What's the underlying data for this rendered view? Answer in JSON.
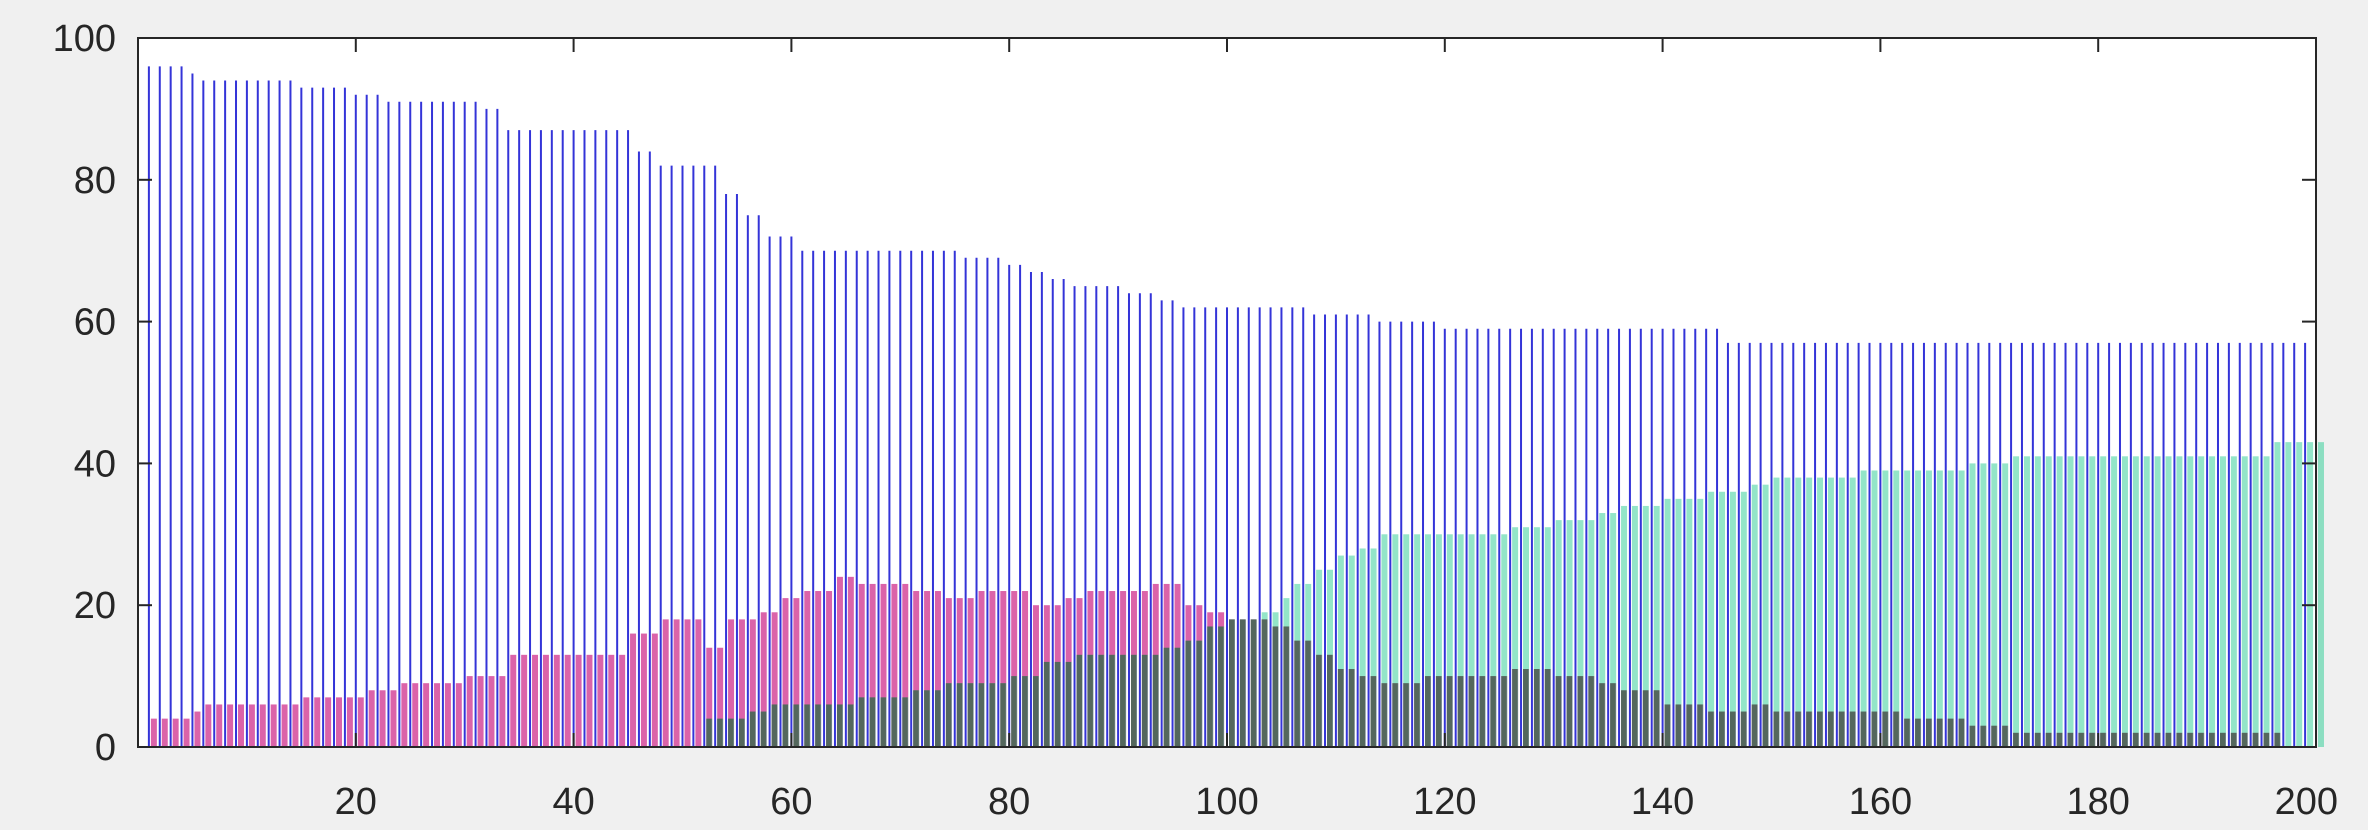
{
  "chart_data": {
    "type": "bar",
    "title": "",
    "xlabel": "",
    "ylabel": "",
    "xlim": [
      0,
      200
    ],
    "ylim": [
      0,
      100
    ],
    "x_ticks": [
      20,
      40,
      60,
      80,
      100,
      120,
      140,
      160,
      180,
      200
    ],
    "y_ticks": [
      0,
      20,
      40,
      60,
      80,
      100
    ],
    "grid": false,
    "bar_colors": {
      "blue": "#3434d8",
      "pink": "#cf2f8c",
      "green": "#3ad09a",
      "dark": "#2d3b26"
    },
    "blue_steps": [
      [
        1,
        96
      ],
      [
        5,
        95
      ],
      [
        6,
        94
      ],
      [
        15,
        93
      ],
      [
        20,
        92
      ],
      [
        23,
        91
      ],
      [
        32,
        90
      ],
      [
        34,
        87
      ],
      [
        46,
        84
      ],
      [
        48,
        82
      ],
      [
        54,
        78
      ],
      [
        56,
        75
      ],
      [
        58,
        72
      ],
      [
        61,
        70
      ],
      [
        76,
        69
      ],
      [
        80,
        68
      ],
      [
        82,
        67
      ],
      [
        84,
        66
      ],
      [
        86,
        65
      ],
      [
        91,
        64
      ],
      [
        94,
        63
      ],
      [
        96,
        62
      ],
      [
        108,
        61
      ],
      [
        114,
        60
      ],
      [
        120,
        59
      ],
      [
        146,
        57
      ]
    ],
    "pink_steps": [
      [
        1,
        4
      ],
      [
        5,
        5
      ],
      [
        6,
        6
      ],
      [
        15,
        7
      ],
      [
        21,
        8
      ],
      [
        24,
        9
      ],
      [
        30,
        10
      ],
      [
        34,
        13
      ],
      [
        45,
        16
      ],
      [
        48,
        18
      ],
      [
        52,
        14
      ],
      [
        54,
        18
      ],
      [
        57,
        19
      ],
      [
        59,
        21
      ],
      [
        61,
        22
      ],
      [
        64,
        24
      ],
      [
        66,
        23
      ],
      [
        71,
        22
      ],
      [
        74,
        21
      ],
      [
        77,
        22
      ],
      [
        82,
        20
      ],
      [
        85,
        21
      ],
      [
        87,
        22
      ],
      [
        93,
        23
      ],
      [
        96,
        20
      ],
      [
        98,
        19
      ],
      [
        100,
        18
      ],
      [
        104,
        17
      ],
      [
        106,
        15
      ],
      [
        108,
        13
      ],
      [
        110,
        11
      ],
      [
        112,
        10
      ],
      [
        114,
        9
      ],
      [
        118,
        10
      ],
      [
        126,
        11
      ],
      [
        130,
        10
      ],
      [
        134,
        9
      ],
      [
        136,
        8
      ],
      [
        140,
        6
      ],
      [
        144,
        5
      ],
      [
        148,
        6
      ],
      [
        150,
        5
      ],
      [
        162,
        4
      ],
      [
        168,
        3
      ],
      [
        172,
        2
      ],
      [
        180,
        2
      ],
      [
        197,
        0
      ]
    ],
    "green_steps": [
      [
        1,
        0
      ],
      [
        52,
        4
      ],
      [
        56,
        5
      ],
      [
        58,
        6
      ],
      [
        66,
        7
      ],
      [
        71,
        8
      ],
      [
        74,
        9
      ],
      [
        80,
        10
      ],
      [
        83,
        12
      ],
      [
        86,
        13
      ],
      [
        94,
        14
      ],
      [
        96,
        15
      ],
      [
        98,
        17
      ],
      [
        100,
        18
      ],
      [
        103,
        19
      ],
      [
        105,
        21
      ],
      [
        106,
        23
      ],
      [
        108,
        25
      ],
      [
        110,
        27
      ],
      [
        112,
        28
      ],
      [
        114,
        30
      ],
      [
        126,
        31
      ],
      [
        130,
        32
      ],
      [
        134,
        33
      ],
      [
        136,
        34
      ],
      [
        140,
        35
      ],
      [
        144,
        36
      ],
      [
        148,
        37
      ],
      [
        150,
        38
      ],
      [
        158,
        39
      ],
      [
        168,
        40
      ],
      [
        172,
        41
      ],
      [
        196,
        43
      ]
    ]
  }
}
